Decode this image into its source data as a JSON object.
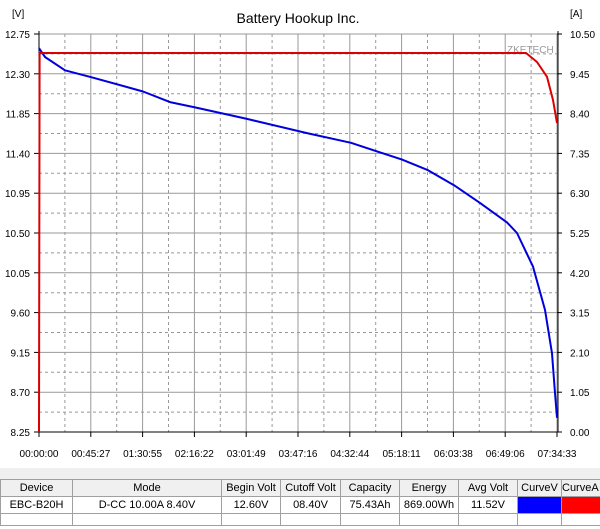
{
  "chart_data": {
    "type": "line",
    "title": "Battery Hookup Inc.",
    "watermark": "ZKETECH",
    "y_left": {
      "unit_label": "[V]",
      "range": [
        8.25,
        12.75
      ],
      "ticks": [
        "12.75",
        "12.30",
        "11.85",
        "11.40",
        "10.95",
        "10.50",
        "10.05",
        "9.60",
        "9.15",
        "8.70",
        "8.25"
      ]
    },
    "y_right": {
      "unit_label": "[A]",
      "range": [
        0.0,
        10.5
      ],
      "ticks": [
        "10.50",
        "9.45",
        "8.40",
        "7.35",
        "6.30",
        "5.25",
        "4.20",
        "3.15",
        "2.10",
        "1.05",
        "0.00"
      ]
    },
    "x": {
      "range": [
        "00:00:00",
        "07:34:33"
      ],
      "ticks": [
        "00:00:00",
        "00:45:27",
        "01:30:55",
        "02:16:22",
        "03:01:49",
        "03:47:16",
        "04:32:44",
        "05:18:11",
        "06:03:38",
        "06:49:06",
        "07:34:33"
      ]
    },
    "grid": true,
    "series": [
      {
        "axis": "left",
        "color": "#0000dd",
        "points": [
          [
            "00:00:00",
            12.59
          ],
          [
            "00:05:16",
            12.49
          ],
          [
            "00:22:49",
            12.34
          ],
          [
            "00:46:15",
            12.26
          ],
          [
            "01:31:16",
            12.1
          ],
          [
            "01:54:57",
            11.98
          ],
          [
            "02:16:53",
            11.92
          ],
          [
            "03:02:31",
            11.79
          ],
          [
            "03:55:10",
            11.63
          ],
          [
            "04:33:47",
            11.52
          ],
          [
            "05:18:32",
            11.33
          ],
          [
            "05:41:21",
            11.21
          ],
          [
            "06:04:10",
            11.04
          ],
          [
            "06:26:59",
            10.84
          ],
          [
            "06:50:40",
            10.62
          ],
          [
            "06:59:27",
            10.5
          ],
          [
            "07:13:30",
            10.12
          ],
          [
            "07:24:01",
            9.63
          ],
          [
            "07:30:10",
            9.14
          ],
          [
            "07:32:48",
            8.69
          ],
          [
            "07:34:33",
            8.41
          ]
        ]
      },
      {
        "axis": "right",
        "color": "#dd0000",
        "points": [
          [
            "00:00:00",
            0.0
          ],
          [
            "00:00:30",
            10.0
          ],
          [
            "07:07:20",
            10.0
          ],
          [
            "07:17:00",
            9.76
          ],
          [
            "07:25:46",
            9.37
          ],
          [
            "07:31:02",
            8.76
          ],
          [
            "07:34:33",
            8.15
          ]
        ]
      }
    ]
  },
  "table": {
    "headers": [
      "Device",
      "Mode",
      "Begin Volt",
      "Cutoff Volt",
      "Capacity",
      "Energy",
      "Avg Volt",
      "CurveV",
      "CurveA"
    ],
    "row": {
      "device": "EBC-B20H",
      "mode": "D-CC 10.00A 8.40V",
      "begin_volt": "12.60V",
      "cutoff_volt": "08.40V",
      "capacity": "75.43Ah",
      "energy": "869.00Wh",
      "avg_volt": "11.52V",
      "curve_v_color": "#0000ff",
      "curve_a_color": "#ff0000"
    }
  }
}
